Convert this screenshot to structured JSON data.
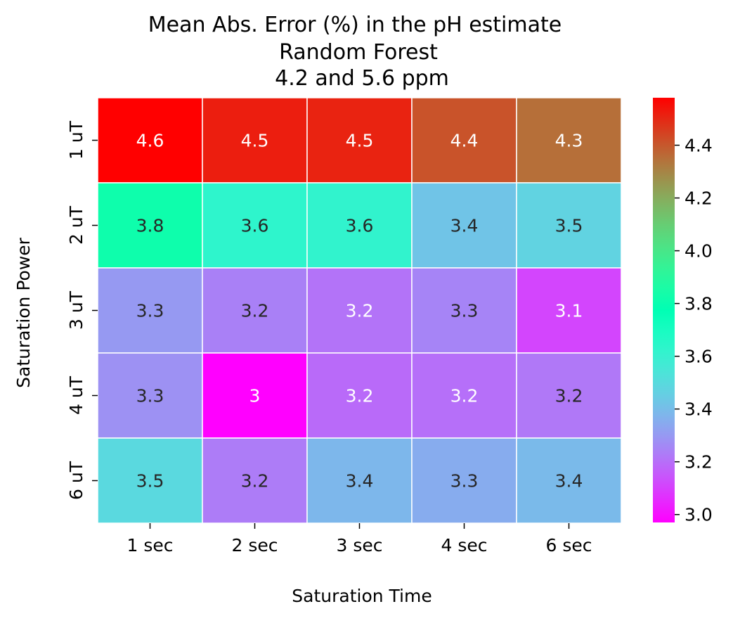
{
  "chart_data": {
    "type": "heatmap",
    "title_lines": [
      "Mean Abs. Error (%) in the pH estimate",
      "Random Forest",
      "4.2 and 5.6 ppm"
    ],
    "xlabel": "Saturation Time",
    "ylabel": "Saturation Power",
    "x_categories": [
      "1 sec",
      "2 sec",
      "3 sec",
      "4 sec",
      "6 sec"
    ],
    "y_categories": [
      "1 uT",
      "2 uT",
      "3 uT",
      "4 uT",
      "6 uT"
    ],
    "values": [
      [
        4.58,
        4.52,
        4.51,
        4.41,
        4.35
      ],
      [
        3.82,
        3.63,
        3.62,
        3.42,
        3.47
      ],
      [
        3.3,
        3.24,
        3.21,
        3.25,
        3.11
      ],
      [
        3.28,
        2.97,
        3.19,
        3.2,
        3.22
      ],
      [
        3.49,
        3.23,
        3.38,
        3.35,
        3.39
      ]
    ],
    "annotations": [
      [
        "4.6",
        "4.5",
        "4.5",
        "4.4",
        "4.3"
      ],
      [
        "3.8",
        "3.6",
        "3.6",
        "3.4",
        "3.5"
      ],
      [
        "3.3",
        "3.2",
        "3.2",
        "3.3",
        "3.1"
      ],
      [
        "3.3",
        "3",
        "3.2",
        "3.2",
        "3.2"
      ],
      [
        "3.5",
        "3.2",
        "3.4",
        "3.3",
        "3.4"
      ]
    ],
    "colormap": "rainbow",
    "color_range": [
      2.97,
      4.58
    ],
    "colorbar_ticks": [
      "3.0",
      "3.2",
      "3.4",
      "3.6",
      "3.8",
      "4.0",
      "4.2",
      "4.4"
    ],
    "colorbar_tick_values": [
      3.0,
      3.2,
      3.4,
      3.6,
      3.8,
      4.0,
      4.2,
      4.4
    ],
    "cell_border_color": "#ffffff",
    "annotation_dark_color": "#262626",
    "annotation_light_color": "#ffffff"
  }
}
